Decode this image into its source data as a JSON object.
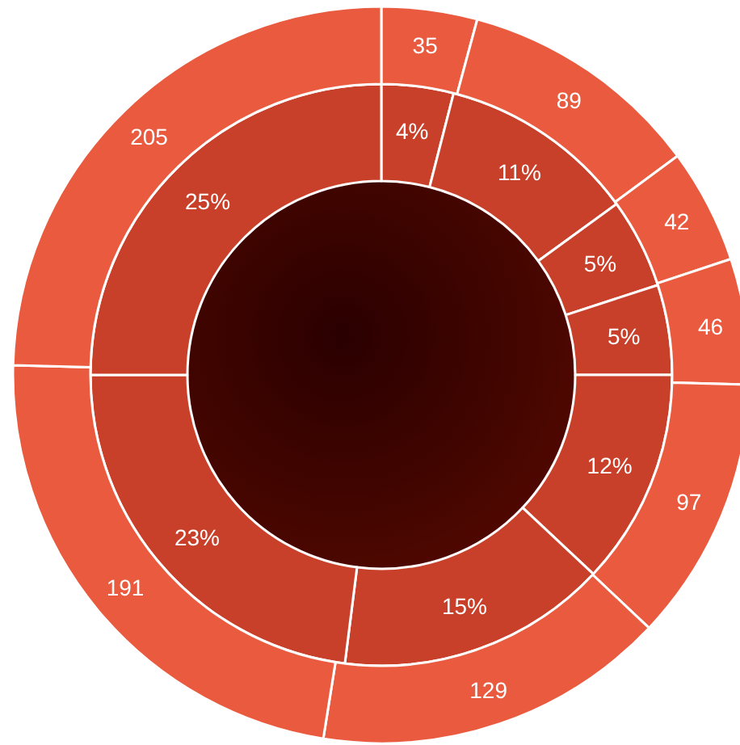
{
  "chart_data": {
    "type": "donut",
    "categories": [
      null,
      null,
      null,
      null,
      null,
      null,
      null,
      null
    ],
    "series": [
      {
        "values": [
          4,
          11,
          5,
          5,
          12,
          15,
          23,
          25
        ],
        "color": "#c9402a",
        "value_labels": [
          "4%",
          "11%",
          "5%",
          "5%",
          "12%",
          "15%",
          "23%",
          "25%"
        ]
      },
      {
        "values": [
          35,
          89,
          42,
          46,
          97,
          129,
          191,
          205
        ],
        "color": "#ea5a3f"
      }
    ],
    "data_labels": true
  }
}
